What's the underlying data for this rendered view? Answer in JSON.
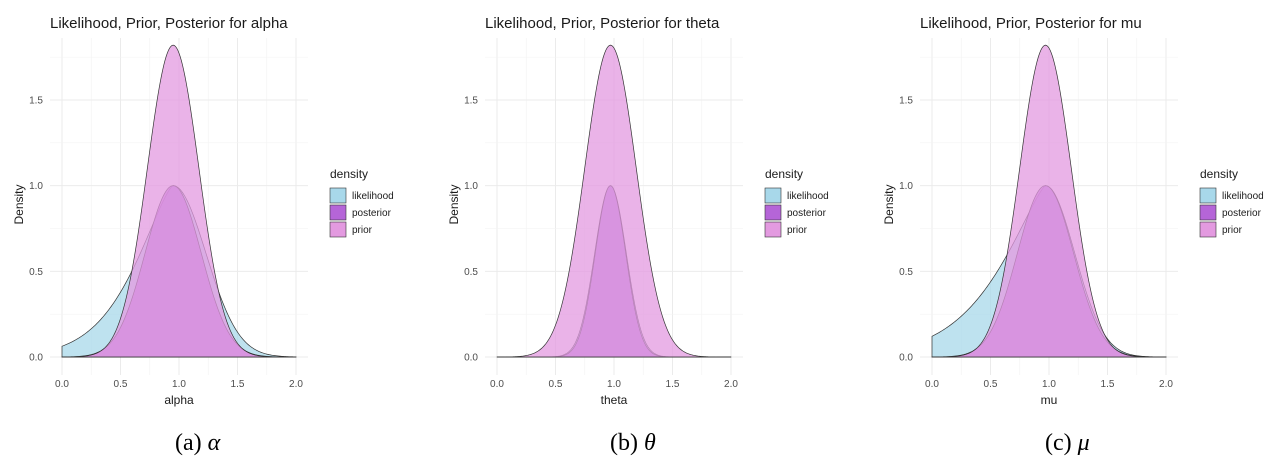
{
  "chart_data": [
    {
      "type": "area",
      "title": "Likelihood, Prior, Posterior for alpha",
      "xlabel": "alpha",
      "ylabel": "Density",
      "xlim": [
        0,
        2
      ],
      "ylim": [
        0,
        1.85
      ],
      "xticks": [
        "0.0",
        "0.5",
        "1.0",
        "1.5",
        "2.0"
      ],
      "yticks": [
        "0.0",
        "0.5",
        "1.0",
        "1.5"
      ],
      "legend_title": "density",
      "legend_position": "right",
      "grid": true,
      "caption": "(a)",
      "caption_symbol": "α",
      "series": [
        {
          "name": "likelihood",
          "color": "#a8d8ea",
          "peak_x": 0.95,
          "peak_y": 1.0,
          "shape": "left-skewed",
          "left_scale": 0.28,
          "right_scale": 0.28,
          "left_power": 1.4,
          "right_power": 2
        },
        {
          "name": "posterior",
          "color": "#b565d8",
          "peak_x": 0.95,
          "peak_y": 1.0,
          "shape": "gaussian",
          "left_scale": 0.24,
          "right_scale": 0.24,
          "left_power": 2,
          "right_power": 2
        },
        {
          "name": "prior",
          "color": "#e39ae0",
          "peak_x": 0.95,
          "peak_y": 1.82,
          "shape": "gaussian",
          "left_scale": 0.22,
          "right_scale": 0.22,
          "left_power": 2,
          "right_power": 2
        }
      ]
    },
    {
      "type": "area",
      "title": "Likelihood, Prior, Posterior for theta",
      "xlabel": "theta",
      "ylabel": "Density",
      "xlim": [
        0,
        2
      ],
      "ylim": [
        0,
        1.85
      ],
      "xticks": [
        "0.0",
        "0.5",
        "1.0",
        "1.5",
        "2.0"
      ],
      "yticks": [
        "0.0",
        "0.5",
        "1.0",
        "1.5"
      ],
      "legend_title": "density",
      "legend_position": "right",
      "grid": true,
      "caption": "(b)",
      "caption_symbol": "θ",
      "series": [
        {
          "name": "likelihood",
          "color": "#a8d8ea",
          "peak_x": 0.97,
          "peak_y": 1.0,
          "shape": "gaussian",
          "left_scale": 0.135,
          "right_scale": 0.135,
          "left_power": 2,
          "right_power": 2
        },
        {
          "name": "posterior",
          "color": "#b565d8",
          "peak_x": 0.97,
          "peak_y": 1.0,
          "shape": "gaussian",
          "left_scale": 0.13,
          "right_scale": 0.13,
          "left_power": 2,
          "right_power": 2
        },
        {
          "name": "prior",
          "color": "#e39ae0",
          "peak_x": 0.97,
          "peak_y": 1.82,
          "shape": "gaussian",
          "left_scale": 0.22,
          "right_scale": 0.22,
          "left_power": 2,
          "right_power": 2
        }
      ]
    },
    {
      "type": "area",
      "title": "Likelihood, Prior, Posterior for mu",
      "xlabel": "mu",
      "ylabel": "Density",
      "xlim": [
        0,
        2
      ],
      "ylim": [
        0,
        1.85
      ],
      "xticks": [
        "0.0",
        "0.5",
        "1.0",
        "1.5",
        "2.0"
      ],
      "yticks": [
        "0.0",
        "0.5",
        "1.0",
        "1.5"
      ],
      "legend_title": "density",
      "legend_position": "right",
      "grid": true,
      "caption": "(c)",
      "caption_symbol": "μ",
      "series": [
        {
          "name": "likelihood",
          "color": "#a8d8ea",
          "peak_x": 0.97,
          "peak_y": 1.0,
          "shape": "left-skewed",
          "left_scale": 0.32,
          "right_scale": 0.25,
          "left_power": 1.3,
          "right_power": 2
        },
        {
          "name": "posterior",
          "color": "#b565d8",
          "peak_x": 0.97,
          "peak_y": 1.0,
          "shape": "gaussian",
          "left_scale": 0.24,
          "right_scale": 0.24,
          "left_power": 2,
          "right_power": 2
        },
        {
          "name": "prior",
          "color": "#e39ae0",
          "peak_x": 0.97,
          "peak_y": 1.82,
          "shape": "gaussian",
          "left_scale": 0.22,
          "right_scale": 0.22,
          "left_power": 2,
          "right_power": 2
        }
      ]
    }
  ]
}
